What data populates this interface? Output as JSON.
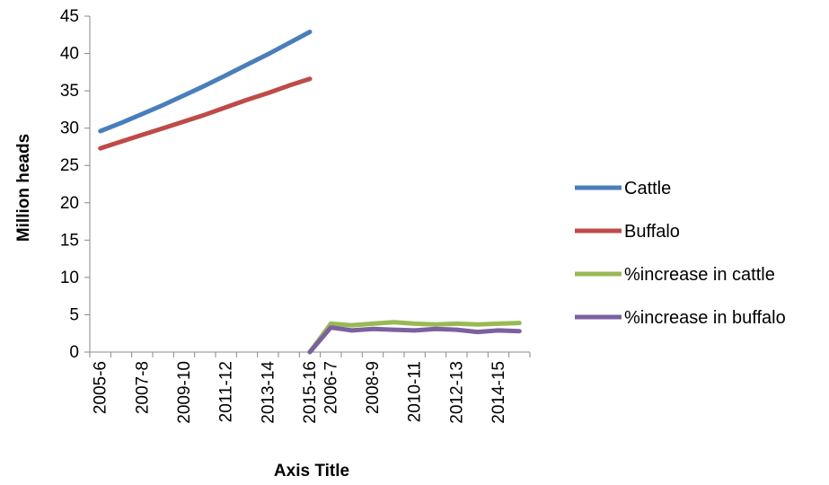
{
  "chart_data": {
    "type": "line",
    "title": "",
    "xlabel": "Axis Title",
    "ylabel": "Million heads",
    "ylim": [
      0,
      45
    ],
    "yticks": [
      0,
      5,
      10,
      15,
      20,
      25,
      30,
      35,
      40,
      45
    ],
    "grid": false,
    "legend_position": "right",
    "categories": [
      "2005-6",
      "2006-7",
      "2007-8",
      "2008-9",
      "2009-10",
      "2010-11",
      "2011-12",
      "2012-13",
      "2013-14",
      "2014-15",
      "2015-16",
      "2006-7",
      "2007-8",
      "2008-9",
      "2009-10",
      "2010-11",
      "2011-12",
      "2012-13",
      "2013-14",
      "2014-15",
      "2015-16"
    ],
    "category_labels": [
      "2005-6",
      "",
      "2007-8",
      "",
      "2009-10",
      "",
      "2011-12",
      "",
      "2013-14",
      "",
      "2015-16",
      "2006-7",
      "",
      "2008-9",
      "",
      "2010-11",
      "",
      "2012-13",
      "",
      "2014-15",
      ""
    ],
    "series": [
      {
        "name": "Cattle",
        "color": "#4A7EBB",
        "values": [
          29.6,
          30.7,
          31.9,
          33.1,
          34.4,
          35.7,
          37.1,
          38.5,
          39.9,
          41.4,
          42.9,
          null,
          null,
          null,
          null,
          null,
          null,
          null,
          null,
          null,
          null
        ]
      },
      {
        "name": "Buffalo",
        "color": "#BE4B48",
        "values": [
          27.3,
          28.2,
          29.1,
          30.0,
          30.9,
          31.8,
          32.8,
          33.8,
          34.7,
          35.7,
          36.6,
          null,
          null,
          null,
          null,
          null,
          null,
          null,
          null,
          null,
          null
        ]
      },
      {
        "name": "%increase in cattle",
        "color": "#98B954",
        "values": [
          null,
          null,
          null,
          null,
          null,
          null,
          null,
          null,
          null,
          null,
          0,
          3.8,
          3.6,
          3.8,
          4.0,
          3.8,
          3.7,
          3.8,
          3.7,
          3.8,
          3.9
        ]
      },
      {
        "name": "%increase in buffalo",
        "color": "#7D60A0",
        "values": [
          null,
          null,
          null,
          null,
          null,
          null,
          null,
          null,
          null,
          null,
          0,
          3.3,
          2.9,
          3.1,
          3.0,
          2.9,
          3.1,
          3.0,
          2.7,
          2.9,
          2.8
        ]
      }
    ]
  }
}
